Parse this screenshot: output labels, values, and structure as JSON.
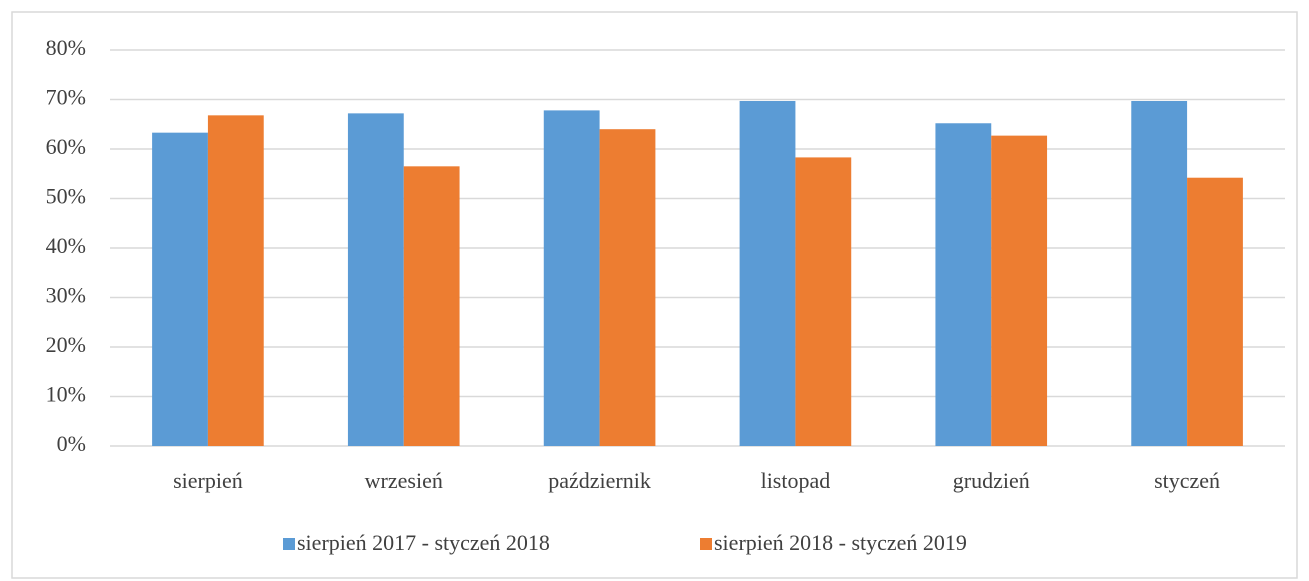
{
  "chart_data": {
    "type": "bar",
    "categories": [
      "sierpień",
      "wrzesień",
      "październik",
      "listopad",
      "grudzień",
      "styczeń"
    ],
    "series": [
      {
        "name": "sierpień 2017 - styczeń 2018",
        "color": "#5b9bd5",
        "values": [
          63.3,
          67.2,
          67.8,
          69.7,
          65.2,
          69.7
        ]
      },
      {
        "name": "sierpień 2018 - styczeń 2019",
        "color": "#ed7d31",
        "values": [
          66.8,
          56.5,
          64.0,
          58.3,
          62.7,
          54.2
        ]
      }
    ],
    "ylim": [
      0,
      80
    ],
    "yticks": [
      {
        "value": 0,
        "label": "0%"
      },
      {
        "value": 10,
        "label": "10%"
      },
      {
        "value": 20,
        "label": "20%"
      },
      {
        "value": 30,
        "label": "30%"
      },
      {
        "value": 40,
        "label": "40%"
      },
      {
        "value": 50,
        "label": "50%"
      },
      {
        "value": 60,
        "label": "60%"
      },
      {
        "value": 70,
        "label": "70%"
      },
      {
        "value": 80,
        "label": "80%"
      }
    ],
    "grid": true,
    "legend": "bottom"
  }
}
